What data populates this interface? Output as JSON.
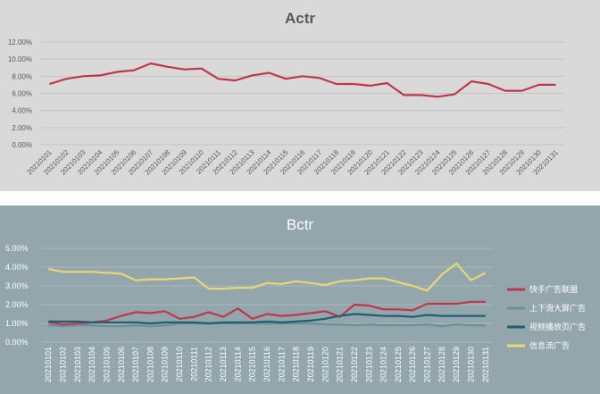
{
  "chart_data": [
    {
      "type": "line",
      "title": "Actr",
      "categories": [
        "20210101",
        "20210102",
        "20210103",
        "20210104",
        "20210105",
        "20210106",
        "20210107",
        "20210108",
        "20210109",
        "20210110",
        "20210111",
        "20210112",
        "20210113",
        "20210114",
        "20210115",
        "20210116",
        "20210117",
        "20210118",
        "20210119",
        "20210120",
        "20210121",
        "20210122",
        "20210123",
        "20210124",
        "20210125",
        "20210126",
        "20210127",
        "20210128",
        "20210129",
        "20210130",
        "20210131"
      ],
      "yticks": [
        "0.00%",
        "2.00%",
        "4.00%",
        "6.00%",
        "8.00%",
        "10.00%",
        "12.00%"
      ],
      "ylim": [
        0,
        12
      ],
      "series": [
        {
          "name": "Actr",
          "color": "#c0364a",
          "values": [
            7.1,
            7.7,
            8.0,
            8.1,
            8.5,
            8.7,
            9.5,
            9.1,
            8.8,
            8.9,
            7.7,
            7.5,
            8.1,
            8.4,
            7.7,
            8.0,
            7.8,
            7.1,
            7.1,
            6.9,
            7.2,
            5.8,
            5.8,
            5.6,
            5.9,
            7.4,
            7.1,
            6.3,
            6.3,
            7.0,
            7.0
          ]
        }
      ],
      "grid": true,
      "legend": "none"
    },
    {
      "type": "line",
      "title": "Bctr",
      "categories": [
        "20210101",
        "20210102",
        "20210103",
        "20210104",
        "20210105",
        "20210106",
        "20210107",
        "20210108",
        "20210109",
        "20210110",
        "20210111",
        "20210112",
        "20210113",
        "20210114",
        "20210115",
        "20210116",
        "20210117",
        "20210118",
        "20210119",
        "20210120",
        "20210121",
        "20210122",
        "20210123",
        "20210124",
        "20210125",
        "20210126",
        "20210127",
        "20210128",
        "20210129",
        "20210130",
        "20210131"
      ],
      "yticks": [
        "0.00%",
        "1.00%",
        "2.00%",
        "3.00%",
        "4.00%",
        "5.00%"
      ],
      "ylim": [
        0,
        5
      ],
      "series": [
        {
          "name": "快手广告联盟",
          "color": "#c0364a",
          "values": [
            1.05,
            0.95,
            1.0,
            1.05,
            1.15,
            1.4,
            1.6,
            1.55,
            1.65,
            1.25,
            1.35,
            1.6,
            1.35,
            1.8,
            1.25,
            1.5,
            1.4,
            1.45,
            1.55,
            1.65,
            1.35,
            2.0,
            1.95,
            1.75,
            1.75,
            1.7,
            2.05,
            2.05,
            2.05,
            2.15,
            2.15
          ]
        },
        {
          "name": "上下滑大屏广告",
          "color": "#6b8f98",
          "values": [
            0.9,
            0.85,
            0.9,
            0.9,
            0.85,
            0.85,
            0.9,
            0.85,
            0.9,
            1.0,
            1.0,
            1.0,
            1.0,
            1.0,
            1.0,
            1.0,
            1.0,
            1.0,
            1.0,
            0.95,
            0.95,
            0.9,
            0.95,
            0.9,
            0.9,
            0.9,
            0.95,
            0.85,
            0.95,
            0.9,
            0.9
          ]
        },
        {
          "name": "视频播放页广告",
          "color": "#1f5f74",
          "values": [
            1.1,
            1.1,
            1.1,
            1.05,
            1.05,
            1.05,
            1.05,
            1.0,
            1.05,
            1.05,
            1.05,
            1.0,
            1.05,
            1.05,
            1.05,
            1.1,
            1.05,
            1.1,
            1.15,
            1.25,
            1.4,
            1.5,
            1.45,
            1.4,
            1.4,
            1.35,
            1.45,
            1.4,
            1.4,
            1.4,
            1.4
          ]
        },
        {
          "name": "信息流广告",
          "color": "#e8d774",
          "values": [
            3.9,
            3.75,
            3.75,
            3.75,
            3.7,
            3.65,
            3.3,
            3.35,
            3.35,
            3.4,
            3.45,
            2.85,
            2.85,
            2.9,
            2.9,
            3.15,
            3.1,
            3.25,
            3.15,
            3.05,
            3.25,
            3.3,
            3.4,
            3.4,
            3.2,
            3.0,
            2.75,
            3.6,
            4.2,
            3.3,
            3.7
          ]
        }
      ],
      "grid": true,
      "legend": "right"
    }
  ]
}
